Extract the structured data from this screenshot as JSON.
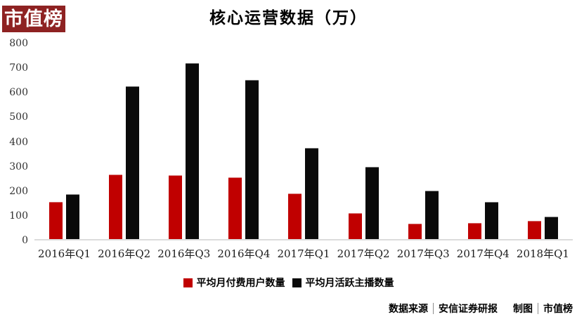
{
  "logo": {
    "text": "市值榜"
  },
  "title": "核心运营数据（万）",
  "colors": {
    "logo_bg": "#8e2222",
    "paying_users_bar": "#c00000",
    "active_streamers_bar": "#0a0a0a",
    "axis_line": "#dcdcdc"
  },
  "chart_data": {
    "type": "bar",
    "title": "核心运营数据（万）",
    "categories": [
      "2016年Q1",
      "2016年Q2",
      "2016年Q3",
      "2016年Q4",
      "2017年Q1",
      "2017年Q2",
      "2017年Q3",
      "2017年Q4",
      "2018年Q1"
    ],
    "series": [
      {
        "name": "平均月付费用户数量",
        "color": "#c00000",
        "values": [
          150,
          263,
          258,
          250,
          184,
          105,
          63,
          66,
          73
        ]
      },
      {
        "name": "平均月活跃主播数量",
        "color": "#0a0a0a",
        "values": [
          182,
          620,
          716,
          646,
          371,
          292,
          197,
          152,
          92
        ]
      }
    ],
    "xlabel": "",
    "ylabel": "",
    "ylim": [
      0,
      800
    ],
    "y_ticks": [
      0,
      100,
      200,
      300,
      400,
      500,
      600,
      700,
      800
    ],
    "grid": false,
    "legend_position": "bottom"
  },
  "legend": {
    "items": [
      {
        "label": "平均月付费用户数量",
        "color": "#c00000"
      },
      {
        "label": "平均月活跃主播数量",
        "color": "#0a0a0a"
      }
    ]
  },
  "footer": {
    "source_label": "数据来源",
    "source_value": "安信证券研报",
    "credit_label": "制图",
    "credit_value": "市值榜"
  }
}
